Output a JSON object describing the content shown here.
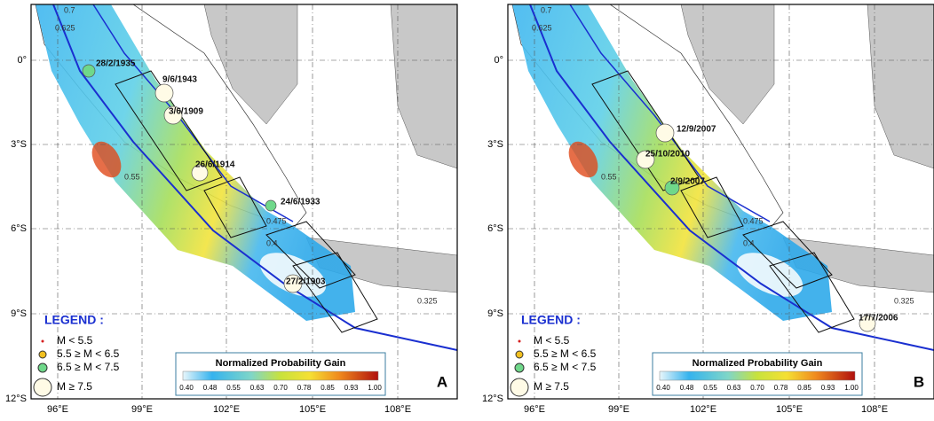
{
  "axes": {
    "lat_labels": [
      "0°",
      "3°S",
      "6°S",
      "9°S",
      "12°S"
    ],
    "lon_labels": [
      "96°E",
      "99°E",
      "102°E",
      "105°E",
      "108°E"
    ]
  },
  "legend": {
    "title": "LEGEND :",
    "items": [
      "M < 5.5",
      "5.5 ≥ M < 6.5",
      "6.5 ≥ M < 7.5",
      "M ≥ 7.5"
    ]
  },
  "colorbar": {
    "title": "Normalized Probability Gain",
    "ticks": [
      "0.40",
      "0.48",
      "0.55",
      "0.63",
      "0.70",
      "0.78",
      "0.85",
      "0.93",
      "1.00"
    ]
  },
  "panels": [
    {
      "label": "A",
      "events": [
        "28/2/1935",
        "9/6/1943",
        "3/6/1909",
        "26/6/1914",
        "24/6/1933",
        "27/2/1903"
      ],
      "contour_labels": [
        "0.7",
        "0.625",
        "0.55",
        "0.475",
        "0.4",
        "0.325"
      ]
    },
    {
      "label": "B",
      "events": [
        "12/9/2007",
        "25/10/2010",
        "2/9/2007",
        "17/7/2006"
      ],
      "contour_labels": [
        "0.7",
        "0.625",
        "0.55",
        "0.475",
        "0.4",
        "0.325"
      ]
    }
  ]
}
